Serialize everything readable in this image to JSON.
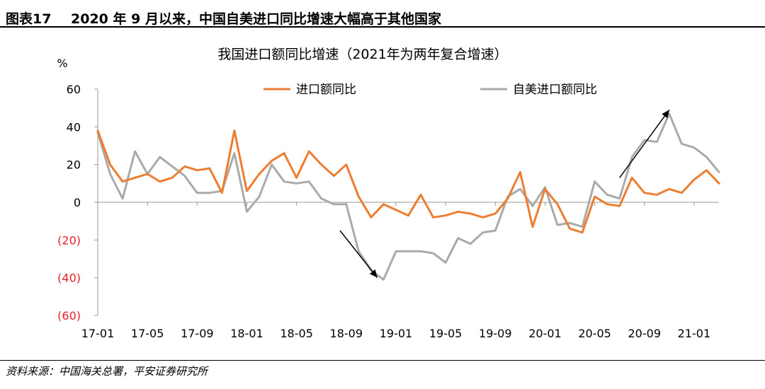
{
  "figure": {
    "number": "图表17",
    "title": "2020 年 9 月以来，中国自美进口同比增速大幅高于其他国家",
    "source": "资料来源：中国海关总署，平安证券研究所"
  },
  "chart_data": {
    "type": "line",
    "title": "我国进口额同比增速（2021年为两年复合增速）",
    "ylabel": "%",
    "xlabel": "",
    "ylim": [
      -60,
      60
    ],
    "yticks": [
      60,
      40,
      20,
      0,
      -20,
      -40,
      -60
    ],
    "ytick_labels": [
      "60",
      "40",
      "20",
      "0",
      "(20)",
      "(40)",
      "(60)"
    ],
    "negative_tick_color": "#e8202a",
    "grid": false,
    "legend": "top",
    "x_tick_labels": [
      "17-01",
      "17-05",
      "17-09",
      "18-01",
      "18-05",
      "18-09",
      "19-01",
      "19-05",
      "19-09",
      "20-01",
      "20-05",
      "20-09",
      "21-01"
    ],
    "x_tick_every": 4,
    "n_points": 51,
    "series": [
      {
        "name": "进口额同比",
        "color": "#ed7d31",
        "values": [
          38,
          20,
          11,
          13,
          15,
          11,
          13,
          19,
          17,
          18,
          5,
          38,
          6,
          15,
          22,
          26,
          13,
          27,
          20,
          14,
          20,
          3,
          -8,
          -1,
          -4,
          -7,
          4,
          -8,
          -7,
          -5,
          -6,
          -8,
          -6,
          2,
          16,
          -13,
          7,
          -1,
          -14,
          -16,
          3,
          -1,
          -2,
          13,
          5,
          4,
          7,
          5,
          12,
          17,
          10
        ]
      },
      {
        "name": "自美进口额同比",
        "color": "#aaaaaa",
        "values": [
          37,
          15,
          2,
          27,
          15,
          24,
          19,
          14,
          5,
          5,
          6,
          26,
          -5,
          3,
          20,
          11,
          10,
          11,
          2,
          -1,
          -1,
          -26,
          -36,
          -41,
          -26,
          -26,
          -26,
          -27,
          -32,
          -19,
          -22,
          -16,
          -15,
          3,
          7,
          -2,
          8,
          -12,
          -11,
          -13,
          11,
          4,
          2,
          24,
          33,
          32,
          47,
          31,
          29,
          24,
          16
        ]
      }
    ],
    "annotations": [
      {
        "type": "arrow",
        "direction": "down",
        "from_index": 19.5,
        "from_value": -15,
        "to_index": 22.5,
        "to_value": -40
      },
      {
        "type": "arrow",
        "direction": "up",
        "from_index": 42,
        "from_value": 13,
        "to_index": 46,
        "to_value": 49
      }
    ]
  }
}
